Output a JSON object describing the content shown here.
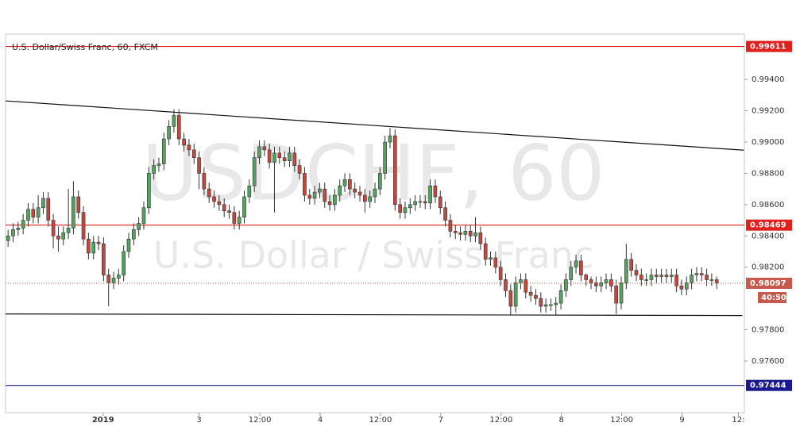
{
  "chart_data": {
    "type": "candlestick",
    "title": "U.S. Dollar/Swiss Franc, 60, FXCM",
    "watermark": "USDCHF, 60",
    "watermark_subtitle": "U.S. Dollar / Swiss Franc",
    "up_color": "#53a25f",
    "down_color": "#c1473f",
    "xlim": [
      0,
      147
    ],
    "xticks": [
      {
        "value": 19.4,
        "label": "2019"
      },
      {
        "value": 38.5,
        "label": "3"
      },
      {
        "value": 50.6,
        "label": "12:00"
      },
      {
        "value": 62.6,
        "label": "4"
      },
      {
        "value": 74.6,
        "label": "12:00"
      },
      {
        "value": 86.6,
        "label": "7"
      },
      {
        "value": 98.6,
        "label": "12:00"
      },
      {
        "value": 110.6,
        "label": "8"
      },
      {
        "value": 122.6,
        "label": "12:00"
      },
      {
        "value": 134.6,
        "label": "9"
      },
      {
        "value": 145.8,
        "label": "12:"
      }
    ],
    "ylim": [
      0.9727,
      0.9969
    ],
    "yticks": [
      {
        "value": 0.994,
        "label": "0.99400"
      },
      {
        "value": 0.992,
        "label": "0.99200"
      },
      {
        "value": 0.99,
        "label": "0.99000"
      },
      {
        "value": 0.988,
        "label": "0.98800"
      },
      {
        "value": 0.986,
        "label": "0.98600"
      },
      {
        "value": 0.984,
        "label": "0.98400"
      },
      {
        "value": 0.982,
        "label": "0.98200"
      },
      {
        "value": 0.978,
        "label": "0.97800"
      },
      {
        "value": 0.976,
        "label": "0.97600"
      }
    ],
    "open": [
      0.9837,
      0.984,
      0.9844,
      0.9845,
      0.985,
      0.9857,
      0.9852,
      0.9858,
      0.9864,
      0.985,
      0.984,
      0.9838,
      0.9842,
      0.9845,
      0.9865,
      0.9855,
      0.9838,
      0.9829,
      0.9836,
      0.9835,
      0.9815,
      0.981,
      0.9813,
      0.9815,
      0.983,
      0.9838,
      0.9844,
      0.9848,
      0.9858,
      0.988,
      0.9885,
      0.9886,
      0.9902,
      0.991,
      0.9917,
      0.9902,
      0.9898,
      0.9895,
      0.989,
      0.988,
      0.987,
      0.9865,
      0.9862,
      0.986,
      0.9856,
      0.9855,
      0.9848,
      0.9852,
      0.9865,
      0.9872,
      0.989,
      0.9897,
      0.9895,
      0.9887,
      0.9893,
      0.989,
      0.9888,
      0.9893,
      0.9885,
      0.988,
      0.9866,
      0.9864,
      0.9868,
      0.987,
      0.9862,
      0.986,
      0.9866,
      0.9872,
      0.9876,
      0.987,
      0.9868,
      0.9866,
      0.9862,
      0.9865,
      0.987,
      0.988,
      0.99,
      0.9904,
      0.986,
      0.9855,
      0.9858,
      0.986,
      0.9862,
      0.9862,
      0.9861,
      0.9872,
      0.9865,
      0.9858,
      0.985,
      0.9843,
      0.9842,
      0.9841,
      0.9843,
      0.984,
      0.9842,
      0.9835,
      0.9825,
      0.9826,
      0.982,
      0.9812,
      0.9805,
      0.9795,
      0.981,
      0.9812,
      0.9804,
      0.9802,
      0.98,
      0.9795,
      0.9796,
      0.9796,
      0.9797,
      0.9805,
      0.9812,
      0.982,
      0.9824,
      0.9815,
      0.9812,
      0.981,
      0.9808,
      0.981,
      0.9812,
      0.9808,
      0.9797,
      0.981,
      0.9825,
      0.9818,
      0.9815,
      0.9812,
      0.9812,
      0.9815,
      0.9814,
      0.9815,
      0.9814,
      0.9815,
      0.9808,
      0.9806,
      0.981,
      0.9815,
      0.9816,
      0.9815,
      0.9812,
      0.9812
    ],
    "high": [
      0.9844,
      0.9848,
      0.9849,
      0.9854,
      0.9861,
      0.9861,
      0.9866,
      0.9868,
      0.9868,
      0.9854,
      0.9846,
      0.9846,
      0.987,
      0.9875,
      0.9869,
      0.9859,
      0.9842,
      0.984,
      0.984,
      0.9839,
      0.9819,
      0.9817,
      0.9819,
      0.9834,
      0.9842,
      0.9848,
      0.9852,
      0.9862,
      0.9884,
      0.9889,
      0.989,
      0.9906,
      0.9914,
      0.9921,
      0.9921,
      0.9906,
      0.9902,
      0.9899,
      0.9894,
      0.9884,
      0.9874,
      0.9869,
      0.9866,
      0.9864,
      0.986,
      0.9859,
      0.9856,
      0.9869,
      0.9876,
      0.9894,
      0.9901,
      0.9901,
      0.9899,
      0.9897,
      0.9897,
      0.9894,
      0.9897,
      0.9897,
      0.9889,
      0.9884,
      0.987,
      0.9872,
      0.9874,
      0.9874,
      0.9866,
      0.987,
      0.9876,
      0.988,
      0.988,
      0.9874,
      0.9872,
      0.987,
      0.9869,
      0.9874,
      0.9884,
      0.9904,
      0.9909,
      0.9908,
      0.9864,
      0.9862,
      0.9864,
      0.9866,
      0.9866,
      0.9866,
      0.9876,
      0.9876,
      0.9869,
      0.9862,
      0.9854,
      0.9847,
      0.9846,
      0.9847,
      0.9847,
      0.9852,
      0.9846,
      0.9839,
      0.983,
      0.983,
      0.9824,
      0.9816,
      0.9809,
      0.9814,
      0.9816,
      0.9816,
      0.9808,
      0.9806,
      0.9804,
      0.98,
      0.98,
      0.9801,
      0.9809,
      0.9816,
      0.9824,
      0.9828,
      0.9828,
      0.9816,
      0.9814,
      0.9814,
      0.9814,
      0.9816,
      0.9816,
      0.9812,
      0.9814,
      0.9835,
      0.9829,
      0.9822,
      0.9819,
      0.9816,
      0.9819,
      0.9819,
      0.9819,
      0.9819,
      0.9819,
      0.9819,
      0.9812,
      0.9814,
      0.9819,
      0.982,
      0.982,
      0.9819,
      0.9816,
      0.9814
    ],
    "low": [
      0.9833,
      0.9836,
      0.984,
      0.9841,
      0.9846,
      0.9848,
      0.9848,
      0.9854,
      0.9846,
      0.9832,
      0.983,
      0.9834,
      0.9838,
      0.9841,
      0.9851,
      0.9834,
      0.9825,
      0.9825,
      0.9831,
      0.9811,
      0.9795,
      0.9806,
      0.9809,
      0.9811,
      0.9826,
      0.9834,
      0.984,
      0.9844,
      0.9854,
      0.9876,
      0.9881,
      0.9882,
      0.9898,
      0.9906,
      0.9898,
      0.9894,
      0.9891,
      0.9886,
      0.987,
      0.9866,
      0.9861,
      0.9858,
      0.9856,
      0.9852,
      0.9851,
      0.9844,
      0.9844,
      0.9848,
      0.9861,
      0.9868,
      0.9886,
      0.9891,
      0.9883,
      0.9855,
      0.9886,
      0.9884,
      0.9884,
      0.9881,
      0.9876,
      0.9862,
      0.986,
      0.986,
      0.9864,
      0.9858,
      0.9856,
      0.9856,
      0.9862,
      0.9868,
      0.9866,
      0.9864,
      0.9862,
      0.9855,
      0.9858,
      0.9861,
      0.9866,
      0.9876,
      0.9896,
      0.9856,
      0.9851,
      0.9851,
      0.9854,
      0.9856,
      0.9858,
      0.9857,
      0.9857,
      0.9861,
      0.9854,
      0.9846,
      0.9839,
      0.9838,
      0.9837,
      0.9837,
      0.9836,
      0.9836,
      0.9831,
      0.9821,
      0.9821,
      0.9816,
      0.9808,
      0.9801,
      0.9789,
      0.9791,
      0.9806,
      0.98,
      0.9798,
      0.9796,
      0.9791,
      0.9791,
      0.9792,
      0.9789,
      0.9793,
      0.9801,
      0.9808,
      0.9816,
      0.9811,
      0.9808,
      0.9806,
      0.9804,
      0.9804,
      0.9806,
      0.9804,
      0.979,
      0.9793,
      0.9806,
      0.9814,
      0.9811,
      0.9808,
      0.9808,
      0.9808,
      0.981,
      0.981,
      0.981,
      0.981,
      0.9804,
      0.9802,
      0.9802,
      0.9806,
      0.9811,
      0.9811,
      0.9808,
      0.9808,
      0.9806
    ],
    "close": [
      0.984,
      0.9844,
      0.9845,
      0.985,
      0.9857,
      0.9852,
      0.9858,
      0.9864,
      0.985,
      0.984,
      0.9838,
      0.9842,
      0.9845,
      0.9865,
      0.9855,
      0.9838,
      0.9829,
      0.9836,
      0.9835,
      0.9815,
      0.981,
      0.9813,
      0.9815,
      0.983,
      0.9838,
      0.9844,
      0.9848,
      0.9858,
      0.988,
      0.9885,
      0.9886,
      0.9902,
      0.991,
      0.9917,
      0.9902,
      0.9898,
      0.9895,
      0.989,
      0.988,
      0.987,
      0.9865,
      0.9862,
      0.986,
      0.9856,
      0.9855,
      0.9848,
      0.9852,
      0.9865,
      0.9872,
      0.989,
      0.9897,
      0.9895,
      0.9887,
      0.9893,
      0.989,
      0.9888,
      0.9893,
      0.9885,
      0.988,
      0.9866,
      0.9864,
      0.9868,
      0.987,
      0.9862,
      0.986,
      0.9866,
      0.9872,
      0.9876,
      0.987,
      0.9868,
      0.9866,
      0.9862,
      0.9865,
      0.987,
      0.988,
      0.99,
      0.9904,
      0.986,
      0.9855,
      0.9858,
      0.986,
      0.9862,
      0.9862,
      0.9861,
      0.9872,
      0.9865,
      0.9858,
      0.985,
      0.9843,
      0.9842,
      0.9841,
      0.9843,
      0.984,
      0.9842,
      0.9835,
      0.9825,
      0.9826,
      0.982,
      0.9812,
      0.9805,
      0.9795,
      0.981,
      0.9812,
      0.9804,
      0.9802,
      0.98,
      0.9795,
      0.9796,
      0.9796,
      0.9797,
      0.9805,
      0.9812,
      0.982,
      0.9824,
      0.9815,
      0.9812,
      0.981,
      0.9808,
      0.981,
      0.9812,
      0.9808,
      0.9797,
      0.981,
      0.9825,
      0.9818,
      0.9815,
      0.9812,
      0.9812,
      0.9815,
      0.9814,
      0.9815,
      0.9814,
      0.9815,
      0.9808,
      0.9806,
      0.981,
      0.9815,
      0.9816,
      0.9815,
      0.9812,
      0.9812,
      0.981
    ],
    "levels": [
      {
        "value": 0.99611,
        "color": "#e0201d"
      },
      {
        "value": 0.98469,
        "color": "#e0201d"
      },
      {
        "value": 0.97444,
        "color": "#1a1a8c"
      }
    ],
    "trendlines": [
      {
        "x": [
          0,
          146.9
        ],
        "y": [
          0.99263,
          0.98948
        ]
      },
      {
        "x": [
          0,
          146.6
        ],
        "y": [
          0.97901,
          0.97891
        ]
      }
    ],
    "last_price": 0.98097,
    "last_price_color": "#c65a4e",
    "countdown": "40:50"
  }
}
